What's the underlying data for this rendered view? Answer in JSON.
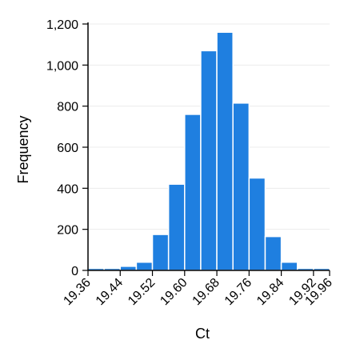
{
  "chart_data": {
    "type": "bar",
    "title": "",
    "xlabel": "Ct",
    "ylabel": "Frequency",
    "ylim": [
      0,
      1200
    ],
    "xlim": [
      19.36,
      19.96
    ],
    "grid": true,
    "bin_width": 0.04,
    "bins": [
      {
        "x0": 19.36,
        "x1": 19.4,
        "value": 10
      },
      {
        "x0": 19.4,
        "x1": 19.44,
        "value": 10
      },
      {
        "x0": 19.44,
        "x1": 19.48,
        "value": 20
      },
      {
        "x0": 19.48,
        "x1": 19.52,
        "value": 40
      },
      {
        "x0": 19.52,
        "x1": 19.56,
        "value": 175
      },
      {
        "x0": 19.56,
        "x1": 19.6,
        "value": 420
      },
      {
        "x0": 19.6,
        "x1": 19.64,
        "value": 760
      },
      {
        "x0": 19.64,
        "x1": 19.68,
        "value": 1070
      },
      {
        "x0": 19.68,
        "x1": 19.72,
        "value": 1160
      },
      {
        "x0": 19.72,
        "x1": 19.76,
        "value": 815
      },
      {
        "x0": 19.76,
        "x1": 19.8,
        "value": 450
      },
      {
        "x0": 19.8,
        "x1": 19.84,
        "value": 165
      },
      {
        "x0": 19.84,
        "x1": 19.88,
        "value": 40
      },
      {
        "x0": 19.88,
        "x1": 19.92,
        "value": 10
      },
      {
        "x0": 19.92,
        "x1": 19.96,
        "value": 10
      }
    ],
    "y_ticks": [
      {
        "value": 0,
        "label": "0"
      },
      {
        "value": 200,
        "label": "200"
      },
      {
        "value": 400,
        "label": "400"
      },
      {
        "value": 600,
        "label": "600"
      },
      {
        "value": 800,
        "label": "800"
      },
      {
        "value": 1000,
        "label": "1,000"
      },
      {
        "value": 1200,
        "label": "1,200"
      }
    ],
    "x_ticks": [
      {
        "value": 19.36,
        "label": "19.36"
      },
      {
        "value": 19.44,
        "label": "19.44"
      },
      {
        "value": 19.52,
        "label": "19.52"
      },
      {
        "value": 19.6,
        "label": "19.60"
      },
      {
        "value": 19.68,
        "label": "19.68"
      },
      {
        "value": 19.76,
        "label": "19.76"
      },
      {
        "value": 19.84,
        "label": "19.84"
      },
      {
        "value": 19.92,
        "label": "19.92"
      },
      {
        "value": 19.96,
        "label": "19.96"
      }
    ],
    "colors": {
      "bar": "#1f7fe0",
      "grid": "#ececec"
    }
  }
}
